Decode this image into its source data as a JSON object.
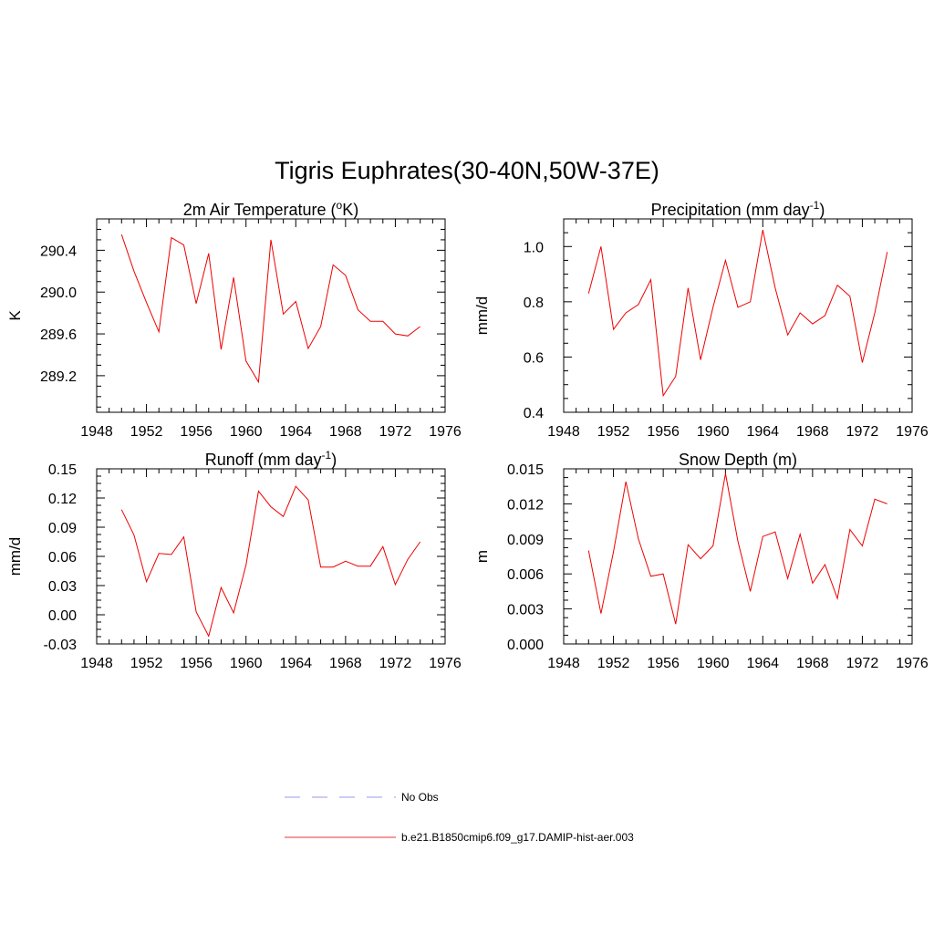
{
  "figure": {
    "title": "Tigris Euphrates(30-40N,50W-37E)"
  },
  "legend": {
    "items": [
      {
        "label": "No Obs",
        "color": "#9999ee",
        "style": "dashed"
      },
      {
        "label": "b.e21.B1850cmip6.f09_g17.DAMIP-hist-aer.003",
        "color": "#ee3333",
        "style": "solid"
      }
    ]
  },
  "chart_data": [
    {
      "type": "line",
      "title": "2m Air Temperature (°K)",
      "title_main": "2m Air Temperature (",
      "title_sup": "o",
      "title_end": "K)",
      "xlabel": "",
      "ylabel": "K",
      "xlim": [
        1948,
        1976
      ],
      "ylim": [
        288.85,
        290.7
      ],
      "xticks": [
        "1948",
        "1952",
        "1956",
        "1960",
        "1964",
        "1968",
        "1972",
        "1976"
      ],
      "yticks": [
        "289.2",
        "289.6",
        "290.0",
        "290.4"
      ],
      "series": [
        {
          "color": "#ee0000",
          "x": [
            1950,
            1951,
            1952,
            1953,
            1954,
            1955,
            1956,
            1957,
            1958,
            1959,
            1960,
            1961,
            1962,
            1963,
            1964,
            1965,
            1966,
            1967,
            1968,
            1969,
            1970,
            1971,
            1972,
            1973,
            1974
          ],
          "y": [
            290.55,
            290.2,
            289.9,
            289.62,
            290.52,
            290.45,
            289.89,
            290.37,
            289.45,
            290.14,
            289.34,
            289.14,
            290.5,
            289.79,
            289.91,
            289.46,
            289.67,
            290.26,
            290.16,
            289.83,
            289.72,
            289.72,
            289.6,
            289.58,
            289.67
          ]
        }
      ]
    },
    {
      "type": "line",
      "title": "Precipitation (mm day-1)",
      "title_main": "Precipitation (mm day",
      "title_sup": "-1",
      "title_end": ")",
      "xlabel": "",
      "ylabel": "mm/d",
      "xlim": [
        1948,
        1976
      ],
      "ylim": [
        0.4,
        1.1
      ],
      "xticks": [
        "1948",
        "1952",
        "1956",
        "1960",
        "1964",
        "1968",
        "1972",
        "1976"
      ],
      "yticks": [
        "0.4",
        "0.6",
        "0.8",
        "1.0"
      ],
      "series": [
        {
          "color": "#ee0000",
          "x": [
            1950,
            1951,
            1952,
            1953,
            1954,
            1955,
            1956,
            1957,
            1958,
            1959,
            1960,
            1961,
            1962,
            1963,
            1964,
            1965,
            1966,
            1967,
            1968,
            1969,
            1970,
            1971,
            1972,
            1973,
            1974
          ],
          "y": [
            0.83,
            1.0,
            0.7,
            0.76,
            0.79,
            0.88,
            0.46,
            0.53,
            0.85,
            0.59,
            0.78,
            0.95,
            0.78,
            0.8,
            1.06,
            0.85,
            0.68,
            0.76,
            0.72,
            0.75,
            0.86,
            0.82,
            0.58,
            0.76,
            0.98
          ]
        }
      ]
    },
    {
      "type": "line",
      "title": "Runoff (mm day-1)",
      "title_main": "Runoff (mm day",
      "title_sup": "-1",
      "title_end": ")",
      "xlabel": "",
      "ylabel": "mm/d",
      "xlim": [
        1948,
        1976
      ],
      "ylim": [
        -0.03,
        0.15
      ],
      "xticks": [
        "1948",
        "1952",
        "1956",
        "1960",
        "1964",
        "1968",
        "1972",
        "1976"
      ],
      "yticks": [
        "-0.03",
        "0.00",
        "0.03",
        "0.06",
        "0.09",
        "0.12",
        "0.15"
      ],
      "series": [
        {
          "color": "#ee0000",
          "x": [
            1950,
            1951,
            1952,
            1953,
            1954,
            1955,
            1956,
            1957,
            1958,
            1959,
            1960,
            1961,
            1962,
            1963,
            1964,
            1965,
            1966,
            1967,
            1968,
            1969,
            1970,
            1971,
            1972,
            1973,
            1974
          ],
          "y": [
            0.108,
            0.082,
            0.034,
            0.063,
            0.062,
            0.08,
            0.003,
            -0.022,
            0.028,
            0.002,
            0.051,
            0.127,
            0.111,
            0.101,
            0.132,
            0.118,
            0.049,
            0.049,
            0.055,
            0.05,
            0.05,
            0.07,
            0.031,
            0.057,
            0.075
          ]
        }
      ]
    },
    {
      "type": "line",
      "title": "Snow Depth (m)",
      "title_main": "Snow Depth (m)",
      "title_sup": "",
      "title_end": "",
      "xlabel": "",
      "ylabel": "m",
      "xlim": [
        1948,
        1976
      ],
      "ylim": [
        0.0,
        0.015
      ],
      "xticks": [
        "1948",
        "1952",
        "1956",
        "1960",
        "1964",
        "1968",
        "1972",
        "1976"
      ],
      "yticks": [
        "0.000",
        "0.003",
        "0.006",
        "0.009",
        "0.012",
        "0.015"
      ],
      "series": [
        {
          "color": "#ee0000",
          "x": [
            1950,
            1951,
            1952,
            1953,
            1954,
            1955,
            1956,
            1957,
            1958,
            1959,
            1960,
            1961,
            1962,
            1963,
            1964,
            1965,
            1966,
            1967,
            1968,
            1969,
            1970,
            1971,
            1972,
            1973,
            1974
          ],
          "y": [
            0.008,
            0.0026,
            0.0079,
            0.0139,
            0.009,
            0.0058,
            0.006,
            0.0017,
            0.0085,
            0.0073,
            0.0084,
            0.0146,
            0.0088,
            0.0045,
            0.0092,
            0.0096,
            0.0056,
            0.0094,
            0.0052,
            0.0068,
            0.0039,
            0.0098,
            0.0084,
            0.0124,
            0.012
          ]
        }
      ]
    }
  ]
}
